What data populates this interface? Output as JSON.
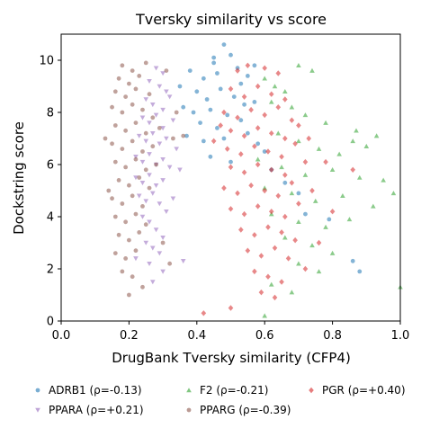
{
  "chart_data": {
    "type": "scatter",
    "title": "Tversky similarity vs score",
    "xlabel": "DrugBank Tversky similarity (CFP4)",
    "ylabel": "Dockstring score",
    "xlim": [
      0.0,
      1.0
    ],
    "ylim": [
      0,
      11
    ],
    "xticks": [
      "0.0",
      "0.2",
      "0.4",
      "0.6",
      "0.8",
      "1.0"
    ],
    "yticks": [
      "0",
      "2",
      "4",
      "6",
      "8",
      "10"
    ],
    "grid": false,
    "legend_position": "bottom, below axes, 3 columns",
    "series": [
      {
        "name": "ADRB1 (ρ=-0.13)",
        "marker": "circle",
        "color": "#1f77b4",
        "points": [
          [
            0.38,
            9.6
          ],
          [
            0.42,
            9.3
          ],
          [
            0.45,
            9.9
          ],
          [
            0.48,
            10.6
          ],
          [
            0.5,
            10.2
          ],
          [
            0.46,
            9.5
          ],
          [
            0.52,
            9.7
          ],
          [
            0.55,
            9.4
          ],
          [
            0.4,
            8.8
          ],
          [
            0.43,
            8.5
          ],
          [
            0.47,
            8.9
          ],
          [
            0.51,
            8.6
          ],
          [
            0.36,
            8.2
          ],
          [
            0.39,
            8.0
          ],
          [
            0.44,
            8.1
          ],
          [
            0.49,
            7.9
          ],
          [
            0.54,
            8.3
          ],
          [
            0.57,
            8.4
          ],
          [
            0.41,
            7.6
          ],
          [
            0.46,
            7.4
          ],
          [
            0.53,
            7.7
          ],
          [
            0.37,
            7.1
          ],
          [
            0.42,
            6.9
          ],
          [
            0.48,
            7.0
          ],
          [
            0.55,
            7.2
          ],
          [
            0.58,
            6.8
          ],
          [
            0.44,
            6.3
          ],
          [
            0.5,
            6.1
          ],
          [
            0.6,
            6.5
          ],
          [
            0.62,
            5.8
          ],
          [
            0.66,
            5.3
          ],
          [
            0.7,
            4.9
          ],
          [
            0.72,
            4.1
          ],
          [
            0.79,
            3.9
          ],
          [
            0.86,
            2.3
          ],
          [
            0.88,
            1.9
          ],
          [
            0.35,
            9.0
          ],
          [
            0.53,
            9.1
          ],
          [
            0.57,
            9.8
          ],
          [
            0.45,
            10.1
          ]
        ]
      },
      {
        "name": "F2 (ρ=-0.21)",
        "marker": "triangle-up",
        "color": "#2ca02c",
        "points": [
          [
            0.6,
            9.3
          ],
          [
            0.63,
            9.0
          ],
          [
            0.66,
            8.8
          ],
          [
            0.7,
            9.8
          ],
          [
            0.74,
            9.6
          ],
          [
            0.62,
            8.4
          ],
          [
            0.68,
            8.2
          ],
          [
            0.72,
            7.9
          ],
          [
            0.78,
            7.6
          ],
          [
            0.64,
            7.2
          ],
          [
            0.7,
            6.9
          ],
          [
            0.76,
            6.6
          ],
          [
            0.82,
            6.4
          ],
          [
            0.86,
            6.9
          ],
          [
            0.9,
            6.7
          ],
          [
            0.93,
            7.1
          ],
          [
            0.58,
            6.2
          ],
          [
            0.65,
            5.9
          ],
          [
            0.72,
            5.6
          ],
          [
            0.8,
            5.8
          ],
          [
            0.88,
            5.5
          ],
          [
            0.95,
            5.4
          ],
          [
            0.6,
            5.1
          ],
          [
            0.68,
            4.9
          ],
          [
            0.75,
            4.6
          ],
          [
            0.83,
            4.8
          ],
          [
            0.92,
            4.4
          ],
          [
            0.62,
            4.1
          ],
          [
            0.7,
            3.8
          ],
          [
            0.78,
            3.6
          ],
          [
            0.85,
            3.9
          ],
          [
            0.66,
            3.2
          ],
          [
            0.74,
            2.9
          ],
          [
            0.8,
            2.6
          ],
          [
            0.7,
            2.2
          ],
          [
            0.76,
            1.9
          ],
          [
            0.62,
            1.4
          ],
          [
            0.68,
            1.1
          ],
          [
            0.6,
            0.2
          ],
          [
            1.0,
            1.3
          ],
          [
            0.98,
            4.9
          ],
          [
            0.87,
            7.3
          ]
        ]
      },
      {
        "name": "PGR (ρ=+0.40)",
        "marker": "diamond",
        "color": "#d62728",
        "points": [
          [
            0.52,
            9.6
          ],
          [
            0.55,
            9.8
          ],
          [
            0.6,
            9.7
          ],
          [
            0.64,
            9.5
          ],
          [
            0.5,
            8.9
          ],
          [
            0.54,
            8.6
          ],
          [
            0.58,
            9.0
          ],
          [
            0.62,
            8.7
          ],
          [
            0.66,
            8.5
          ],
          [
            0.48,
            8.0
          ],
          [
            0.52,
            7.8
          ],
          [
            0.56,
            8.1
          ],
          [
            0.6,
            7.9
          ],
          [
            0.64,
            8.2
          ],
          [
            0.68,
            7.7
          ],
          [
            0.5,
            7.3
          ],
          [
            0.54,
            7.1
          ],
          [
            0.58,
            7.4
          ],
          [
            0.62,
            7.2
          ],
          [
            0.66,
            7.0
          ],
          [
            0.7,
            7.5
          ],
          [
            0.49,
            6.6
          ],
          [
            0.53,
            6.4
          ],
          [
            0.57,
            6.7
          ],
          [
            0.61,
            6.5
          ],
          [
            0.65,
            6.3
          ],
          [
            0.69,
            6.8
          ],
          [
            0.5,
            5.9
          ],
          [
            0.54,
            5.7
          ],
          [
            0.58,
            6.0
          ],
          [
            0.62,
            5.8
          ],
          [
            0.66,
            5.6
          ],
          [
            0.72,
            6.1
          ],
          [
            0.48,
            5.1
          ],
          [
            0.52,
            4.9
          ],
          [
            0.56,
            5.2
          ],
          [
            0.6,
            5.0
          ],
          [
            0.64,
            4.8
          ],
          [
            0.68,
            5.3
          ],
          [
            0.5,
            4.3
          ],
          [
            0.54,
            4.1
          ],
          [
            0.58,
            4.4
          ],
          [
            0.62,
            4.2
          ],
          [
            0.66,
            4.0
          ],
          [
            0.7,
            4.5
          ],
          [
            0.53,
            3.5
          ],
          [
            0.57,
            3.3
          ],
          [
            0.61,
            3.6
          ],
          [
            0.65,
            3.4
          ],
          [
            0.69,
            3.1
          ],
          [
            0.55,
            2.7
          ],
          [
            0.59,
            2.5
          ],
          [
            0.63,
            2.8
          ],
          [
            0.67,
            2.4
          ],
          [
            0.57,
            1.9
          ],
          [
            0.61,
            1.7
          ],
          [
            0.65,
            1.5
          ],
          [
            0.59,
            1.1
          ],
          [
            0.63,
            0.9
          ],
          [
            0.5,
            0.5
          ],
          [
            0.42,
            0.3
          ],
          [
            0.72,
            2.0
          ],
          [
            0.76,
            3.0
          ],
          [
            0.8,
            4.2
          ],
          [
            0.74,
            5.0
          ],
          [
            0.78,
            6.1
          ],
          [
            0.73,
            7.0
          ],
          [
            0.86,
            5.8
          ],
          [
            0.45,
            6.9
          ],
          [
            0.47,
            7.5
          ]
        ]
      },
      {
        "name": "PPARA (ρ=+0.21)",
        "marker": "triangle-down",
        "color": "#9467bd",
        "points": [
          [
            0.28,
            9.7
          ],
          [
            0.3,
            9.5
          ],
          [
            0.26,
            9.2
          ],
          [
            0.29,
            9.0
          ],
          [
            0.31,
            8.8
          ],
          [
            0.25,
            8.5
          ],
          [
            0.27,
            8.3
          ],
          [
            0.3,
            8.1
          ],
          [
            0.32,
            8.6
          ],
          [
            0.24,
            7.8
          ],
          [
            0.26,
            7.6
          ],
          [
            0.28,
            7.9
          ],
          [
            0.3,
            7.4
          ],
          [
            0.33,
            7.7
          ],
          [
            0.23,
            7.1
          ],
          [
            0.25,
            6.9
          ],
          [
            0.27,
            7.2
          ],
          [
            0.29,
            6.8
          ],
          [
            0.31,
            7.0
          ],
          [
            0.34,
            6.6
          ],
          [
            0.22,
            6.3
          ],
          [
            0.24,
            6.1
          ],
          [
            0.26,
            6.4
          ],
          [
            0.28,
            6.0
          ],
          [
            0.3,
            6.2
          ],
          [
            0.32,
            5.9
          ],
          [
            0.22,
            5.5
          ],
          [
            0.24,
            5.3
          ],
          [
            0.26,
            5.6
          ],
          [
            0.28,
            5.2
          ],
          [
            0.3,
            5.4
          ],
          [
            0.23,
            4.8
          ],
          [
            0.25,
            4.6
          ],
          [
            0.27,
            4.9
          ],
          [
            0.29,
            4.5
          ],
          [
            0.31,
            4.2
          ],
          [
            0.24,
            4.0
          ],
          [
            0.26,
            3.8
          ],
          [
            0.28,
            3.5
          ],
          [
            0.3,
            3.2
          ],
          [
            0.25,
            3.0
          ],
          [
            0.27,
            2.8
          ],
          [
            0.29,
            2.6
          ],
          [
            0.26,
            2.2
          ],
          [
            0.22,
            2.4
          ],
          [
            0.3,
            1.9
          ],
          [
            0.27,
            1.5
          ],
          [
            0.33,
            4.7
          ],
          [
            0.35,
            5.8
          ],
          [
            0.36,
            2.3
          ]
        ]
      },
      {
        "name": "PPARG (ρ=-0.39)",
        "marker": "circle",
        "color": "#8c564b",
        "points": [
          [
            0.18,
            9.8
          ],
          [
            0.21,
            9.6
          ],
          [
            0.25,
            9.9
          ],
          [
            0.17,
            9.3
          ],
          [
            0.2,
            9.1
          ],
          [
            0.23,
            9.4
          ],
          [
            0.16,
            8.8
          ],
          [
            0.19,
            8.6
          ],
          [
            0.22,
            8.9
          ],
          [
            0.26,
            8.7
          ],
          [
            0.15,
            8.2
          ],
          [
            0.18,
            8.0
          ],
          [
            0.21,
            8.3
          ],
          [
            0.24,
            8.1
          ],
          [
            0.27,
            7.8
          ],
          [
            0.16,
            7.5
          ],
          [
            0.19,
            7.3
          ],
          [
            0.22,
            7.6
          ],
          [
            0.25,
            7.2
          ],
          [
            0.29,
            7.4
          ],
          [
            0.33,
            7.0
          ],
          [
            0.36,
            7.1
          ],
          [
            0.15,
            6.8
          ],
          [
            0.18,
            6.6
          ],
          [
            0.21,
            6.9
          ],
          [
            0.24,
            6.5
          ],
          [
            0.27,
            6.7
          ],
          [
            0.16,
            6.1
          ],
          [
            0.19,
            5.9
          ],
          [
            0.22,
            6.2
          ],
          [
            0.25,
            5.8
          ],
          [
            0.28,
            6.0
          ],
          [
            0.17,
            5.4
          ],
          [
            0.2,
            5.2
          ],
          [
            0.23,
            5.5
          ],
          [
            0.26,
            5.1
          ],
          [
            0.15,
            4.7
          ],
          [
            0.18,
            4.5
          ],
          [
            0.21,
            4.8
          ],
          [
            0.24,
            4.4
          ],
          [
            0.16,
            4.0
          ],
          [
            0.19,
            3.8
          ],
          [
            0.22,
            4.1
          ],
          [
            0.25,
            3.7
          ],
          [
            0.17,
            3.3
          ],
          [
            0.2,
            3.1
          ],
          [
            0.23,
            3.4
          ],
          [
            0.16,
            2.6
          ],
          [
            0.19,
            2.4
          ],
          [
            0.22,
            2.7
          ],
          [
            0.18,
            1.9
          ],
          [
            0.21,
            1.7
          ],
          [
            0.24,
            1.3
          ],
          [
            0.2,
            1.0
          ],
          [
            0.14,
            5.0
          ],
          [
            0.13,
            7.0
          ],
          [
            0.3,
            3.0
          ],
          [
            0.32,
            2.2
          ],
          [
            0.34,
            8.0
          ],
          [
            0.31,
            9.6
          ]
        ]
      }
    ]
  }
}
